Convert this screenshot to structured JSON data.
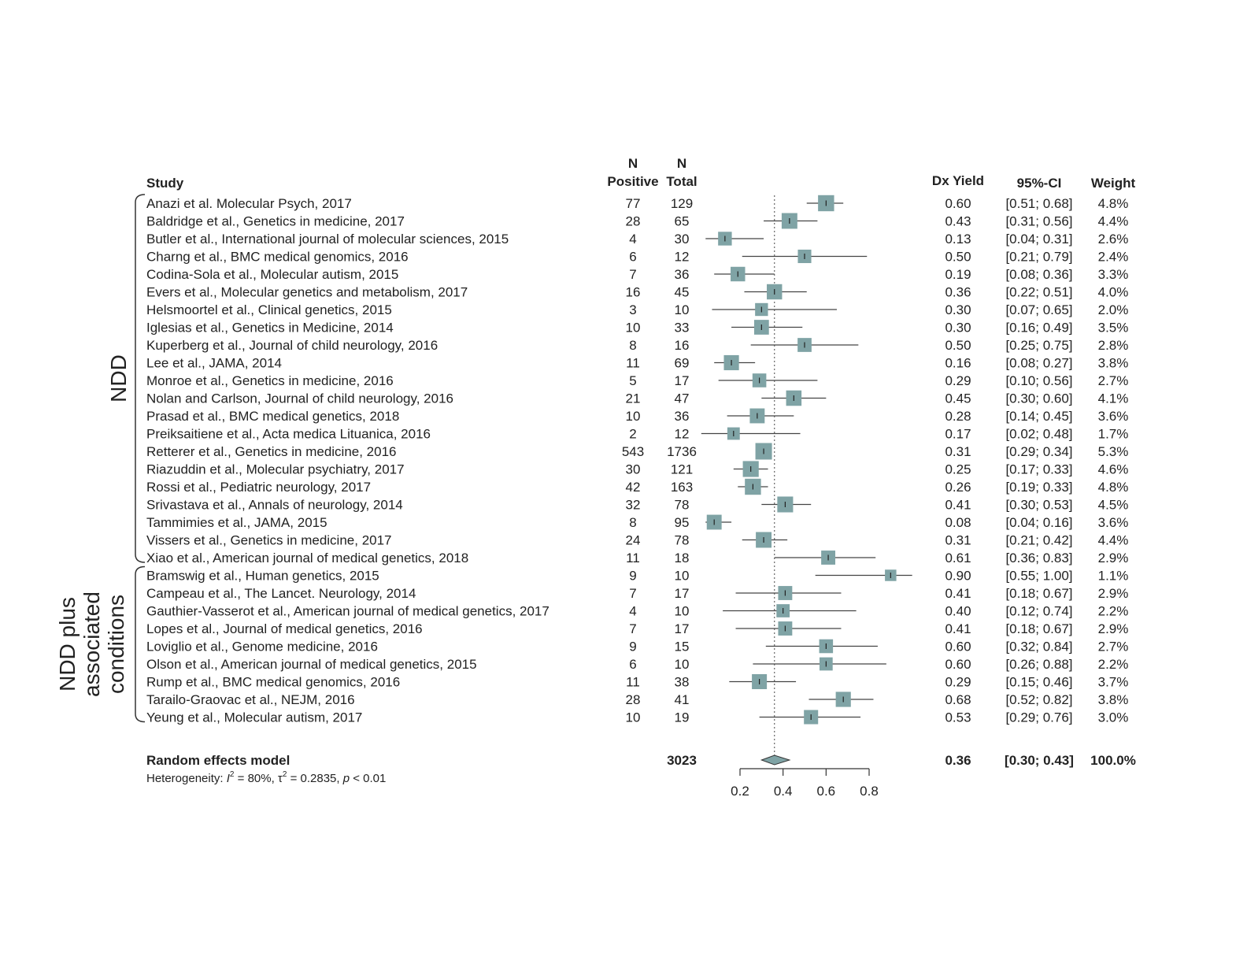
{
  "chart_data": {
    "type": "forest",
    "headers": {
      "study": "Study",
      "n_positive": [
        "N",
        "Positive"
      ],
      "n_total": [
        "N",
        "Total"
      ],
      "yield": "Dx Yield",
      "ci": "95%-CI",
      "weight": "Weight"
    },
    "groups": [
      {
        "label": [
          "NDD"
        ],
        "first": 0,
        "last": 20
      },
      {
        "label": [
          "NDD plus",
          "associated",
          "conditions"
        ],
        "first": 21,
        "last": 29
      }
    ],
    "studies": [
      {
        "study": "Anazi et al. Molecular Psych, 2017",
        "n_pos": "77",
        "n_total": "129",
        "yield": 0.6,
        "ci_low": 0.51,
        "ci_high": 0.68,
        "ci": "[0.51; 0.68]",
        "weight": 4.8,
        "weight_label": "4.8%"
      },
      {
        "study": "Baldridge et al., Genetics in medicine, 2017",
        "n_pos": "28",
        "n_total": "65",
        "yield": 0.43,
        "ci_low": 0.31,
        "ci_high": 0.56,
        "ci": "[0.31; 0.56]",
        "weight": 4.4,
        "weight_label": "4.4%"
      },
      {
        "study": "Butler et al., International journal of molecular sciences, 2015",
        "n_pos": "4",
        "n_total": "30",
        "yield": 0.13,
        "ci_low": 0.04,
        "ci_high": 0.31,
        "ci": "[0.04; 0.31]",
        "weight": 2.6,
        "weight_label": "2.6%"
      },
      {
        "study": "Charng et al., BMC medical genomics, 2016",
        "n_pos": "6",
        "n_total": "12",
        "yield": 0.5,
        "ci_low": 0.21,
        "ci_high": 0.79,
        "ci": "[0.21; 0.79]",
        "weight": 2.4,
        "weight_label": "2.4%"
      },
      {
        "study": "Codina-Sola et al., Molecular autism, 2015",
        "n_pos": "7",
        "n_total": "36",
        "yield": 0.19,
        "ci_low": 0.08,
        "ci_high": 0.36,
        "ci": "[0.08; 0.36]",
        "weight": 3.3,
        "weight_label": "3.3%"
      },
      {
        "study": "Evers et al., Molecular genetics and metabolism, 2017",
        "n_pos": "16",
        "n_total": "45",
        "yield": 0.36,
        "ci_low": 0.22,
        "ci_high": 0.51,
        "ci": "[0.22; 0.51]",
        "weight": 4.0,
        "weight_label": "4.0%"
      },
      {
        "study": "Helsmoortel et al., Clinical genetics, 2015",
        "n_pos": "3",
        "n_total": "10",
        "yield": 0.3,
        "ci_low": 0.07,
        "ci_high": 0.65,
        "ci": "[0.07; 0.65]",
        "weight": 2.0,
        "weight_label": "2.0%"
      },
      {
        "study": "Iglesias et al., Genetics in Medicine, 2014",
        "n_pos": "10",
        "n_total": "33",
        "yield": 0.3,
        "ci_low": 0.16,
        "ci_high": 0.49,
        "ci": "[0.16; 0.49]",
        "weight": 3.5,
        "weight_label": "3.5%"
      },
      {
        "study": "Kuperberg et al., Journal of child neurology, 2016",
        "n_pos": "8",
        "n_total": "16",
        "yield": 0.5,
        "ci_low": 0.25,
        "ci_high": 0.75,
        "ci": "[0.25; 0.75]",
        "weight": 2.8,
        "weight_label": "2.8%"
      },
      {
        "study": "Lee et al.,  JAMA, 2014",
        "n_pos": "11",
        "n_total": "69",
        "yield": 0.16,
        "ci_low": 0.08,
        "ci_high": 0.27,
        "ci": "[0.08; 0.27]",
        "weight": 3.8,
        "weight_label": "3.8%"
      },
      {
        "study": "Monroe et al., Genetics in medicine, 2016",
        "n_pos": "5",
        "n_total": "17",
        "yield": 0.29,
        "ci_low": 0.1,
        "ci_high": 0.56,
        "ci": "[0.10; 0.56]",
        "weight": 2.7,
        "weight_label": "2.7%"
      },
      {
        "study": "Nolan and Carlson, Journal of child neurology, 2016",
        "n_pos": "21",
        "n_total": "47",
        "yield": 0.45,
        "ci_low": 0.3,
        "ci_high": 0.6,
        "ci": "[0.30; 0.60]",
        "weight": 4.1,
        "weight_label": "4.1%"
      },
      {
        "study": "Prasad et al., BMC medical genetics, 2018",
        "n_pos": "10",
        "n_total": "36",
        "yield": 0.28,
        "ci_low": 0.14,
        "ci_high": 0.45,
        "ci": "[0.14; 0.45]",
        "weight": 3.6,
        "weight_label": "3.6%"
      },
      {
        "study": "Preiksaitiene et al., Acta medica Lituanica, 2016",
        "n_pos": "2",
        "n_total": "12",
        "yield": 0.17,
        "ci_low": 0.02,
        "ci_high": 0.48,
        "ci": "[0.02; 0.48]",
        "weight": 1.7,
        "weight_label": "1.7%"
      },
      {
        "study": "Retterer et al., Genetics in medicine, 2016",
        "n_pos": "543",
        "n_total": "1736",
        "yield": 0.31,
        "ci_low": 0.29,
        "ci_high": 0.34,
        "ci": "[0.29; 0.34]",
        "weight": 5.3,
        "weight_label": "5.3%"
      },
      {
        "study": "Riazuddin et al., Molecular psychiatry, 2017",
        "n_pos": "30",
        "n_total": "121",
        "yield": 0.25,
        "ci_low": 0.17,
        "ci_high": 0.33,
        "ci": "[0.17; 0.33]",
        "weight": 4.6,
        "weight_label": "4.6%"
      },
      {
        "study": "Rossi et al., Pediatric neurology, 2017",
        "n_pos": "42",
        "n_total": "163",
        "yield": 0.26,
        "ci_low": 0.19,
        "ci_high": 0.33,
        "ci": "[0.19; 0.33]",
        "weight": 4.8,
        "weight_label": "4.8%"
      },
      {
        "study": "Srivastava et al., Annals of neurology, 2014",
        "n_pos": "32",
        "n_total": "78",
        "yield": 0.41,
        "ci_low": 0.3,
        "ci_high": 0.53,
        "ci": "[0.30; 0.53]",
        "weight": 4.5,
        "weight_label": "4.5%"
      },
      {
        "study": "Tammimies et al., JAMA, 2015",
        "n_pos": "8",
        "n_total": "95",
        "yield": 0.08,
        "ci_low": 0.04,
        "ci_high": 0.16,
        "ci": "[0.04; 0.16]",
        "weight": 3.6,
        "weight_label": "3.6%"
      },
      {
        "study": "Vissers et al., Genetics in medicine, 2017",
        "n_pos": "24",
        "n_total": "78",
        "yield": 0.31,
        "ci_low": 0.21,
        "ci_high": 0.42,
        "ci": "[0.21; 0.42]",
        "weight": 4.4,
        "weight_label": "4.4%"
      },
      {
        "study": "Xiao et al., American journal of medical genetics, 2018",
        "n_pos": "11",
        "n_total": "18",
        "yield": 0.61,
        "ci_low": 0.36,
        "ci_high": 0.83,
        "ci": "[0.36; 0.83]",
        "weight": 2.9,
        "weight_label": "2.9%"
      },
      {
        "study": "Bramswig et al., Human genetics, 2015",
        "n_pos": "9",
        "n_total": "10",
        "yield": 0.9,
        "ci_low": 0.55,
        "ci_high": 1.0,
        "ci": "[0.55; 1.00]",
        "weight": 1.1,
        "weight_label": "1.1%"
      },
      {
        "study": "Campeau et al., The Lancet. Neurology, 2014",
        "n_pos": "7",
        "n_total": "17",
        "yield": 0.41,
        "ci_low": 0.18,
        "ci_high": 0.67,
        "ci": "[0.18; 0.67]",
        "weight": 2.9,
        "weight_label": "2.9%"
      },
      {
        "study": "Gauthier-Vasserot et al., American journal of medical genetics, 2017",
        "n_pos": "4",
        "n_total": "10",
        "yield": 0.4,
        "ci_low": 0.12,
        "ci_high": 0.74,
        "ci": "[0.12; 0.74]",
        "weight": 2.2,
        "weight_label": "2.2%"
      },
      {
        "study": "Lopes et al., Journal of medical genetics, 2016",
        "n_pos": "7",
        "n_total": "17",
        "yield": 0.41,
        "ci_low": 0.18,
        "ci_high": 0.67,
        "ci": "[0.18; 0.67]",
        "weight": 2.9,
        "weight_label": "2.9%"
      },
      {
        "study": "Loviglio et al., Genome medicine, 2016",
        "n_pos": "9",
        "n_total": "15",
        "yield": 0.6,
        "ci_low": 0.32,
        "ci_high": 0.84,
        "ci": "[0.32; 0.84]",
        "weight": 2.7,
        "weight_label": "2.7%"
      },
      {
        "study": "Olson et al., American journal of medical genetics, 2015",
        "n_pos": "6",
        "n_total": "10",
        "yield": 0.6,
        "ci_low": 0.26,
        "ci_high": 0.88,
        "ci": "[0.26; 0.88]",
        "weight": 2.2,
        "weight_label": "2.2%"
      },
      {
        "study": "Rump et al., BMC medical genomics, 2016",
        "n_pos": "11",
        "n_total": "38",
        "yield": 0.29,
        "ci_low": 0.15,
        "ci_high": 0.46,
        "ci": "[0.15; 0.46]",
        "weight": 3.7,
        "weight_label": "3.7%"
      },
      {
        "study": "Tarailo-Graovac et al., NEJM, 2016",
        "n_pos": "28",
        "n_total": "41",
        "yield": 0.68,
        "ci_low": 0.52,
        "ci_high": 0.82,
        "ci": "[0.52; 0.82]",
        "weight": 3.8,
        "weight_label": "3.8%"
      },
      {
        "study": "Yeung et al., Molecular autism, 2017",
        "n_pos": "10",
        "n_total": "19",
        "yield": 0.53,
        "ci_low": 0.29,
        "ci_high": 0.76,
        "ci": "[0.29; 0.76]",
        "weight": 3.0,
        "weight_label": "3.0%"
      }
    ],
    "pooled": {
      "label": "Random effects model",
      "n_total": "3023",
      "yield": 0.36,
      "ci_low": 0.3,
      "ci_high": 0.43,
      "yield_label": "0.36",
      "ci": "[0.30; 0.43]",
      "weight": "100.0%"
    },
    "heterogeneity": {
      "prefix": "Heterogeneity: ",
      "i2_symbol": "I",
      "i2_value": " = 80%, ",
      "tau_symbol": "τ",
      "tau_value": " = 0.2835, ",
      "p_symbol": "p",
      "p_value": " < 0.01",
      "superscript": "2"
    },
    "x_axis": {
      "ticks": [
        0.2,
        0.4,
        0.6,
        0.8
      ],
      "tick_labels": [
        "0.2",
        "0.4",
        "0.6",
        "0.8"
      ],
      "range": [
        0.2,
        0.8
      ]
    },
    "reference_line": 0.36,
    "colors": {
      "box": "#7fa3a5",
      "line": "#444444",
      "diamond": "#7fa3a5"
    }
  }
}
